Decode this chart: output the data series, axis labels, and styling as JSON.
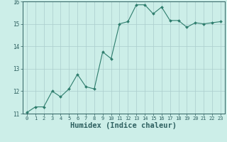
{
  "x": [
    0,
    1,
    2,
    3,
    4,
    5,
    6,
    7,
    8,
    9,
    10,
    11,
    12,
    13,
    14,
    15,
    16,
    17,
    18,
    19,
    20,
    21,
    22,
    23
  ],
  "y": [
    11.05,
    11.3,
    11.3,
    12.0,
    11.75,
    12.1,
    12.75,
    12.2,
    12.1,
    13.75,
    13.45,
    15.0,
    15.1,
    15.85,
    15.85,
    15.45,
    15.75,
    15.15,
    15.15,
    14.85,
    15.05,
    15.0,
    15.05,
    15.1
  ],
  "line_color": "#2e7d6d",
  "marker": "D",
  "marker_size": 2.0,
  "bg_color": "#cceee8",
  "grid_color": "#aacccc",
  "tick_color": "#2e6060",
  "xlabel": "Humidex (Indice chaleur)",
  "xlabel_fontsize": 7.5,
  "ylim": [
    11,
    16
  ],
  "xlim": [
    -0.5,
    23.5
  ],
  "yticks": [
    11,
    12,
    13,
    14,
    15,
    16
  ],
  "xticks": [
    0,
    1,
    2,
    3,
    4,
    5,
    6,
    7,
    8,
    9,
    10,
    11,
    12,
    13,
    14,
    15,
    16,
    17,
    18,
    19,
    20,
    21,
    22,
    23
  ]
}
